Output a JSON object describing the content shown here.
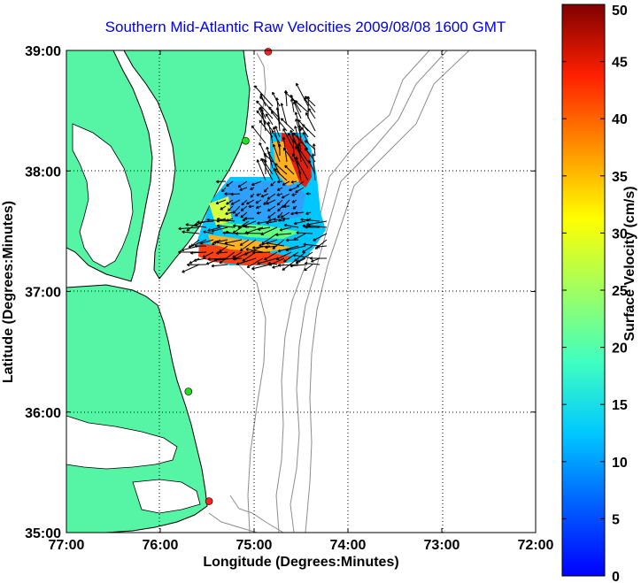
{
  "chart_data": {
    "type": "vector-field-map",
    "title": "Southern Mid-Atlantic Raw Velocities 2009/08/08 1600 GMT",
    "xlabel": "Longitude (Degrees:Minutes)",
    "ylabel": "Latitude (Degrees:Minutes)",
    "x_range": [
      -77,
      -72
    ],
    "y_range": [
      35,
      39
    ],
    "x_ticks": [
      "77:00",
      "76:00",
      "75:00",
      "74:00",
      "73:00",
      "72:00"
    ],
    "x_tick_values": [
      -77,
      -76,
      -75,
      -74,
      -73,
      -72
    ],
    "y_ticks": [
      "35:00",
      "36:00",
      "37:00",
      "38:00",
      "39:00"
    ],
    "y_tick_values": [
      35,
      36,
      37,
      38,
      39
    ],
    "grid": "dotted, at 37:00/38:00 latitude and 76:00/75:00/74:00 longitude",
    "colorbar": {
      "label": "Surface Velocity (cm/s)",
      "min": 0,
      "max": 50,
      "ticks": [
        "0",
        "5",
        "10",
        "15",
        "20",
        "25",
        "30",
        "35",
        "40",
        "45",
        "50"
      ],
      "colormap": "jet"
    },
    "land_color": "#55f5a5",
    "contour_color": "#8c8c8c",
    "stations": [
      {
        "lon": -74.85,
        "lat": 38.99,
        "color": "#ff2020"
      },
      {
        "lon": -75.09,
        "lat": 38.25,
        "color": "#20e020"
      },
      {
        "lon": -75.7,
        "lat": 36.17,
        "color": "#20e020"
      },
      {
        "lon": -75.48,
        "lat": 35.26,
        "color": "#ff2020"
      }
    ]
  }
}
